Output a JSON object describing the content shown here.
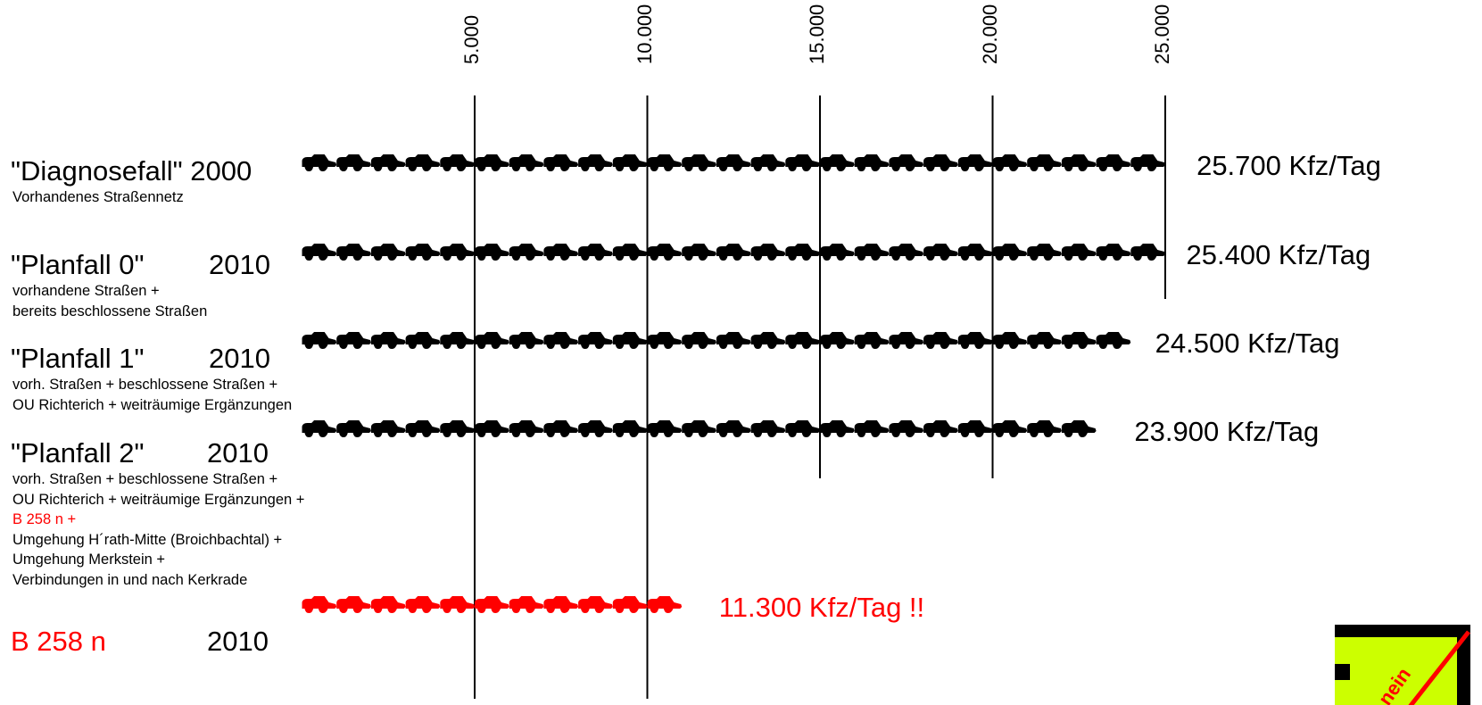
{
  "chart_data": {
    "type": "bar",
    "unit": "Kfz/Tag",
    "x_ticks": [
      {
        "value": 5000,
        "label": "5.000"
      },
      {
        "value": 10000,
        "label": "10.000"
      },
      {
        "value": 15000,
        "label": "15.000"
      },
      {
        "value": 20000,
        "label": "20.000"
      },
      {
        "value": 25000,
        "label": "25.000"
      }
    ],
    "xlim": [
      -4800,
      34000
    ],
    "rows": [
      {
        "name": "\"Diagnosefall\" 2000",
        "year": "",
        "description": [
          "Vorhandenes Straßennetz"
        ],
        "value": 25700,
        "value_label": "25.700 Kfz/Tag",
        "color": "#000000"
      },
      {
        "name": "\"Planfall 0\"",
        "year": "2010",
        "description": [
          "vorhandene Straßen +",
          "bereits beschlossene Straßen"
        ],
        "value": 25400,
        "value_label": "25.400 Kfz/Tag",
        "color": "#000000"
      },
      {
        "name": "\"Planfall 1\"",
        "year": "2010",
        "description": [
          "vorh. Straßen + beschlossene Straßen +",
          "OU Richterich + weiträumige Ergänzungen"
        ],
        "value": 24500,
        "value_label": "24.500 Kfz/Tag",
        "color": "#000000"
      },
      {
        "name": "\"Planfall 2\"",
        "year": "2010",
        "description": [
          "vorh. Straßen + beschlossene Straßen +",
          "OU Richterich + weiträumige Ergänzungen +",
          "B 258 n +",
          "Umgehung H´rath-Mitte (Broichbachtal) +",
          "Umgehung Merkstein +",
          "Verbindungen in und nach Kerkrade"
        ],
        "value": 23900,
        "value_label": "23.900 Kfz/Tag",
        "color": "#000000"
      },
      {
        "name": "B 258 n",
        "year": "2010",
        "description": [],
        "value": 11300,
        "value_label": "11.300 Kfz/Tag !!",
        "color": "#ff0000"
      }
    ]
  },
  "stamp": {
    "text": "nein",
    "background": "#ccff00",
    "line_color": "#ff0000"
  }
}
